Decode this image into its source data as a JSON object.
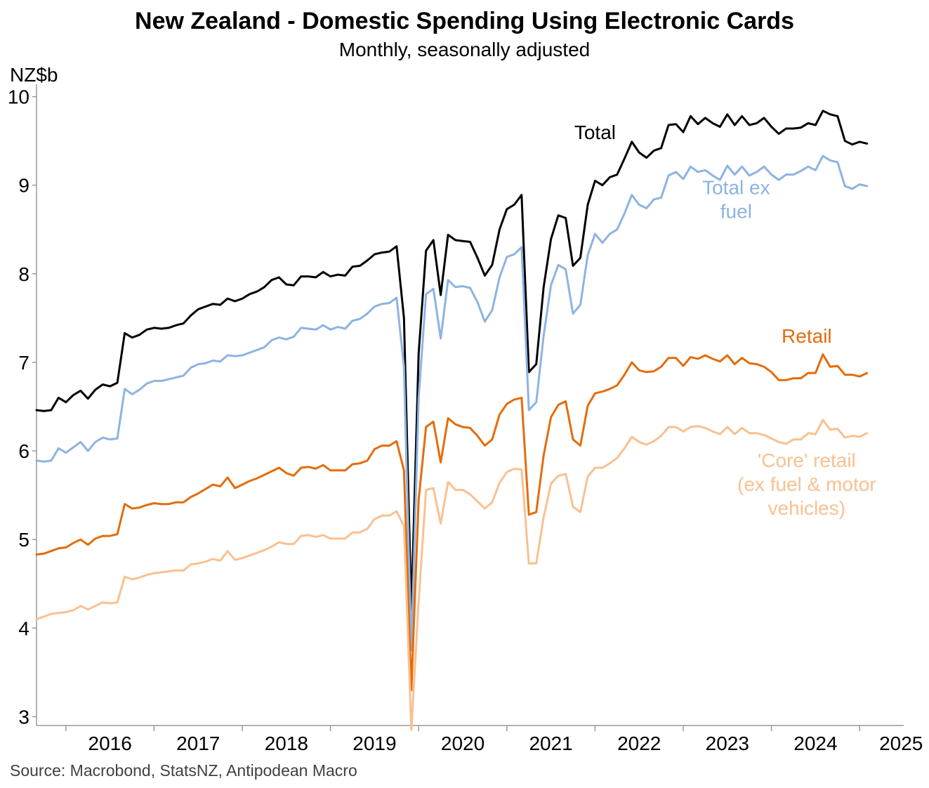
{
  "title": "New Zealand - Domestic Spending Using Electronic Cards",
  "subtitle": "Monthly, seasonally adjusted",
  "unit": "NZ$b",
  "source": "Source: Macrobond, StatsNZ, Antipodean Macro",
  "chart_data": {
    "type": "line",
    "x_start": "2015-09",
    "frequency": "monthly",
    "ylim": [
      2.9,
      10.1
    ],
    "yticks": [
      3,
      4,
      5,
      6,
      7,
      8,
      9,
      10
    ],
    "xtick_labels": [
      "2016",
      "2017",
      "2018",
      "2019",
      "2020",
      "2021",
      "2022",
      "2023",
      "2024",
      "2025"
    ],
    "grid": false,
    "legend": "none",
    "series": [
      {
        "name": "Total",
        "label_lines": [
          "Total"
        ],
        "color": "#000000",
        "values": [
          6.46,
          6.45,
          6.46,
          6.6,
          6.55,
          6.63,
          6.68,
          6.59,
          6.69,
          6.75,
          6.73,
          6.77,
          7.33,
          7.28,
          7.31,
          7.37,
          7.39,
          7.38,
          7.39,
          7.42,
          7.44,
          7.53,
          7.6,
          7.63,
          7.66,
          7.65,
          7.72,
          7.69,
          7.72,
          7.77,
          7.8,
          7.85,
          7.93,
          7.96,
          7.88,
          7.87,
          7.97,
          7.97,
          7.96,
          8.02,
          7.97,
          7.99,
          7.98,
          8.08,
          8.09,
          8.15,
          8.22,
          8.24,
          8.25,
          8.31,
          7.5,
          4.2,
          7.1,
          8.26,
          8.38,
          7.76,
          8.44,
          8.38,
          8.37,
          8.36,
          8.18,
          7.98,
          8.1,
          8.5,
          8.73,
          8.78,
          8.89,
          6.89,
          6.98,
          7.85,
          8.39,
          8.66,
          8.63,
          8.09,
          8.18,
          8.78,
          9.05,
          9.0,
          9.09,
          9.12,
          9.3,
          9.49,
          9.37,
          9.31,
          9.39,
          9.42,
          9.68,
          9.69,
          9.6,
          9.78,
          9.69,
          9.76,
          9.7,
          9.66,
          9.8,
          9.68,
          9.78,
          9.68,
          9.7,
          9.76,
          9.66,
          9.58,
          9.64,
          9.64,
          9.65,
          9.7,
          9.68,
          9.84,
          9.8,
          9.78,
          9.5,
          9.46,
          9.49,
          9.47
        ],
        "label_anchor": [
          2022.0,
          9.52
        ]
      },
      {
        "name": "Total ex fuel",
        "label_lines": [
          "Total ex",
          "fuel"
        ],
        "color": "#8DB3E2",
        "values": [
          5.89,
          5.88,
          5.89,
          6.03,
          5.98,
          6.04,
          6.1,
          6.0,
          6.1,
          6.15,
          6.13,
          6.14,
          6.7,
          6.64,
          6.69,
          6.76,
          6.79,
          6.79,
          6.81,
          6.83,
          6.85,
          6.94,
          6.98,
          6.99,
          7.02,
          7.01,
          7.08,
          7.07,
          7.08,
          7.11,
          7.14,
          7.17,
          7.25,
          7.28,
          7.26,
          7.29,
          7.39,
          7.38,
          7.37,
          7.42,
          7.37,
          7.4,
          7.38,
          7.47,
          7.49,
          7.55,
          7.63,
          7.66,
          7.67,
          7.73,
          6.95,
          3.75,
          6.6,
          7.77,
          7.83,
          7.27,
          7.93,
          7.85,
          7.86,
          7.84,
          7.68,
          7.46,
          7.59,
          7.96,
          8.19,
          8.22,
          8.3,
          6.46,
          6.55,
          7.3,
          7.87,
          8.1,
          8.05,
          7.55,
          7.65,
          8.21,
          8.45,
          8.35,
          8.45,
          8.5,
          8.68,
          8.89,
          8.78,
          8.74,
          8.84,
          8.86,
          9.11,
          9.15,
          9.07,
          9.21,
          9.15,
          9.17,
          9.11,
          9.06,
          9.22,
          9.12,
          9.21,
          9.11,
          9.15,
          9.21,
          9.12,
          9.06,
          9.12,
          9.12,
          9.16,
          9.21,
          9.17,
          9.33,
          9.28,
          9.26,
          8.99,
          8.96,
          9.01,
          8.99
        ],
        "label_anchor": [
          2023.6,
          8.9
        ]
      },
      {
        "name": "Retail",
        "label_lines": [
          "Retail"
        ],
        "color": "#E46C0A",
        "values": [
          4.83,
          4.84,
          4.87,
          4.9,
          4.91,
          4.96,
          5.0,
          4.94,
          5.01,
          5.04,
          5.04,
          5.06,
          5.4,
          5.35,
          5.36,
          5.39,
          5.41,
          5.4,
          5.4,
          5.42,
          5.42,
          5.48,
          5.52,
          5.57,
          5.62,
          5.6,
          5.7,
          5.58,
          5.62,
          5.66,
          5.69,
          5.73,
          5.77,
          5.81,
          5.75,
          5.72,
          5.81,
          5.82,
          5.8,
          5.84,
          5.78,
          5.78,
          5.78,
          5.85,
          5.86,
          5.89,
          6.02,
          6.06,
          6.06,
          6.11,
          5.78,
          3.3,
          5.45,
          6.27,
          6.33,
          5.87,
          6.37,
          6.3,
          6.27,
          6.26,
          6.17,
          6.06,
          6.13,
          6.41,
          6.53,
          6.58,
          6.6,
          5.28,
          5.31,
          5.95,
          6.38,
          6.52,
          6.56,
          6.13,
          6.06,
          6.51,
          6.65,
          6.67,
          6.7,
          6.74,
          6.86,
          7.0,
          6.91,
          6.89,
          6.9,
          6.95,
          7.05,
          7.05,
          6.96,
          7.06,
          7.04,
          7.08,
          7.04,
          7.01,
          7.08,
          6.98,
          7.05,
          6.99,
          6.98,
          6.95,
          6.89,
          6.8,
          6.8,
          6.82,
          6.82,
          6.88,
          6.88,
          7.09,
          6.95,
          6.96,
          6.86,
          6.86,
          6.84,
          6.88
        ],
        "label_anchor": [
          2024.4,
          7.22
        ]
      },
      {
        "name": "'Core' retail (ex fuel & motor vehicles)",
        "label_lines": [
          "'Core' retail",
          "(ex fuel & motor",
          "vehicles)"
        ],
        "color": "#FAC090",
        "values": [
          4.1,
          4.13,
          4.16,
          4.17,
          4.18,
          4.2,
          4.25,
          4.21,
          4.25,
          4.29,
          4.28,
          4.29,
          4.58,
          4.55,
          4.57,
          4.6,
          4.62,
          4.63,
          4.64,
          4.65,
          4.65,
          4.72,
          4.73,
          4.75,
          4.78,
          4.76,
          4.87,
          4.77,
          4.79,
          4.82,
          4.85,
          4.88,
          4.92,
          4.97,
          4.95,
          4.95,
          5.04,
          5.05,
          5.03,
          5.05,
          5.01,
          5.01,
          5.01,
          5.08,
          5.08,
          5.12,
          5.23,
          5.27,
          5.27,
          5.32,
          5.15,
          2.85,
          4.3,
          5.56,
          5.58,
          5.18,
          5.65,
          5.56,
          5.56,
          5.51,
          5.43,
          5.35,
          5.42,
          5.64,
          5.76,
          5.8,
          5.79,
          4.73,
          4.73,
          5.25,
          5.63,
          5.72,
          5.74,
          5.37,
          5.31,
          5.71,
          5.81,
          5.81,
          5.86,
          5.92,
          6.03,
          6.16,
          6.1,
          6.07,
          6.11,
          6.17,
          6.27,
          6.27,
          6.22,
          6.27,
          6.28,
          6.26,
          6.22,
          6.19,
          6.27,
          6.19,
          6.26,
          6.2,
          6.2,
          6.18,
          6.14,
          6.1,
          6.08,
          6.13,
          6.13,
          6.2,
          6.19,
          6.35,
          6.24,
          6.25,
          6.15,
          6.17,
          6.16,
          6.2
        ],
        "label_anchor": [
          2024.4,
          5.82
        ]
      }
    ]
  }
}
